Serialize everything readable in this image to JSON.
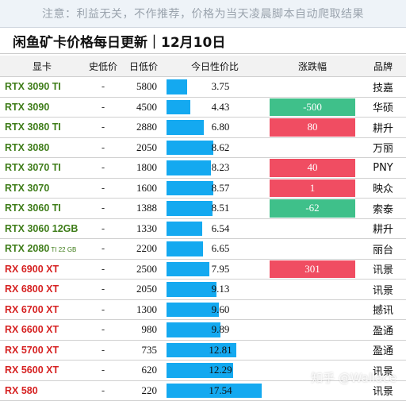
{
  "notice": "注意：利益无关，不作推荐，价格为当天凌晨脚本自动爬取结果",
  "title": "闲鱼矿卡价格每日更新｜12月10日",
  "headers": [
    "显卡",
    "史低价",
    "日低价",
    "今日性价比",
    "涨跌幅",
    "品牌"
  ],
  "ratio_max": 17.54,
  "rows": [
    {
      "name": "RTX 3090 TI",
      "sub": "",
      "color": "green",
      "low": "-",
      "price": "5800",
      "ratio": 3.75,
      "ratio_text": "3.75",
      "change": "",
      "change_dir": "",
      "brand": "技嘉"
    },
    {
      "name": "RTX 3090",
      "sub": "",
      "color": "green",
      "low": "-",
      "price": "4500",
      "ratio": 4.43,
      "ratio_text": "4.43",
      "change": "-500",
      "change_dir": "down",
      "brand": "华硕"
    },
    {
      "name": "RTX 3080 TI",
      "sub": "",
      "color": "green",
      "low": "-",
      "price": "2880",
      "ratio": 6.8,
      "ratio_text": "6.80",
      "change": "80",
      "change_dir": "up",
      "brand": "耕升"
    },
    {
      "name": "RTX 3080",
      "sub": "",
      "color": "green",
      "low": "-",
      "price": "2050",
      "ratio": 8.62,
      "ratio_text": "8.62",
      "change": "",
      "change_dir": "",
      "brand": "万丽"
    },
    {
      "name": "RTX 3070 TI",
      "sub": "",
      "color": "green",
      "low": "-",
      "price": "1800",
      "ratio": 8.23,
      "ratio_text": "8.23",
      "change": "40",
      "change_dir": "up",
      "brand": "PNY"
    },
    {
      "name": "RTX 3070",
      "sub": "",
      "color": "green",
      "low": "-",
      "price": "1600",
      "ratio": 8.57,
      "ratio_text": "8.57",
      "change": "1",
      "change_dir": "up",
      "brand": "映众"
    },
    {
      "name": "RTX 3060 TI",
      "sub": "",
      "color": "green",
      "low": "-",
      "price": "1388",
      "ratio": 8.51,
      "ratio_text": "8.51",
      "change": "-62",
      "change_dir": "down",
      "brand": "索泰"
    },
    {
      "name": "RTX 3060 12GB",
      "sub": "",
      "color": "green",
      "low": "-",
      "price": "1330",
      "ratio": 6.54,
      "ratio_text": "6.54",
      "change": "",
      "change_dir": "",
      "brand": "耕升"
    },
    {
      "name": "RTX 2080",
      "sub": " TI 22 GB",
      "color": "green",
      "low": "-",
      "price": "2200",
      "ratio": 6.65,
      "ratio_text": "6.65",
      "change": "",
      "change_dir": "",
      "brand": "丽台"
    },
    {
      "name": "RX 6900 XT",
      "sub": "",
      "color": "red",
      "low": "-",
      "price": "2500",
      "ratio": 7.95,
      "ratio_text": "7.95",
      "change": "301",
      "change_dir": "up",
      "brand": "讯景"
    },
    {
      "name": "RX 6800 XT",
      "sub": "",
      "color": "red",
      "low": "-",
      "price": "2050",
      "ratio": 9.13,
      "ratio_text": "9.13",
      "change": "",
      "change_dir": "",
      "brand": "讯景"
    },
    {
      "name": "RX 6700 XT",
      "sub": "",
      "color": "red",
      "low": "-",
      "price": "1300",
      "ratio": 9.6,
      "ratio_text": "9.60",
      "change": "",
      "change_dir": "",
      "brand": "撼讯"
    },
    {
      "name": "RX 6600 XT",
      "sub": "",
      "color": "red",
      "low": "-",
      "price": "980",
      "ratio": 9.89,
      "ratio_text": "9.89",
      "change": "",
      "change_dir": "",
      "brand": "盈通"
    },
    {
      "name": "RX 5700 XT",
      "sub": "",
      "color": "red",
      "low": "-",
      "price": "735",
      "ratio": 12.81,
      "ratio_text": "12.81",
      "change": "",
      "change_dir": "",
      "brand": "盈通"
    },
    {
      "name": "RX 5600 XT",
      "sub": "",
      "color": "red",
      "low": "-",
      "price": "620",
      "ratio": 12.29,
      "ratio_text": "12.29",
      "change": "",
      "change_dir": "",
      "brand": "讯景"
    },
    {
      "name": "RX 580",
      "sub": "",
      "color": "red",
      "low": "-",
      "price": "220",
      "ratio": 17.54,
      "ratio_text": "17.54",
      "change": "",
      "change_dir": "",
      "brand": "讯景"
    }
  ],
  "watermark": "知乎 @Wallace",
  "colors": {
    "bar": "#14a9f0",
    "up": "#f04d62",
    "down": "#3fc08a",
    "nvidia": "#3f7d1a",
    "amd": "#d62222"
  }
}
